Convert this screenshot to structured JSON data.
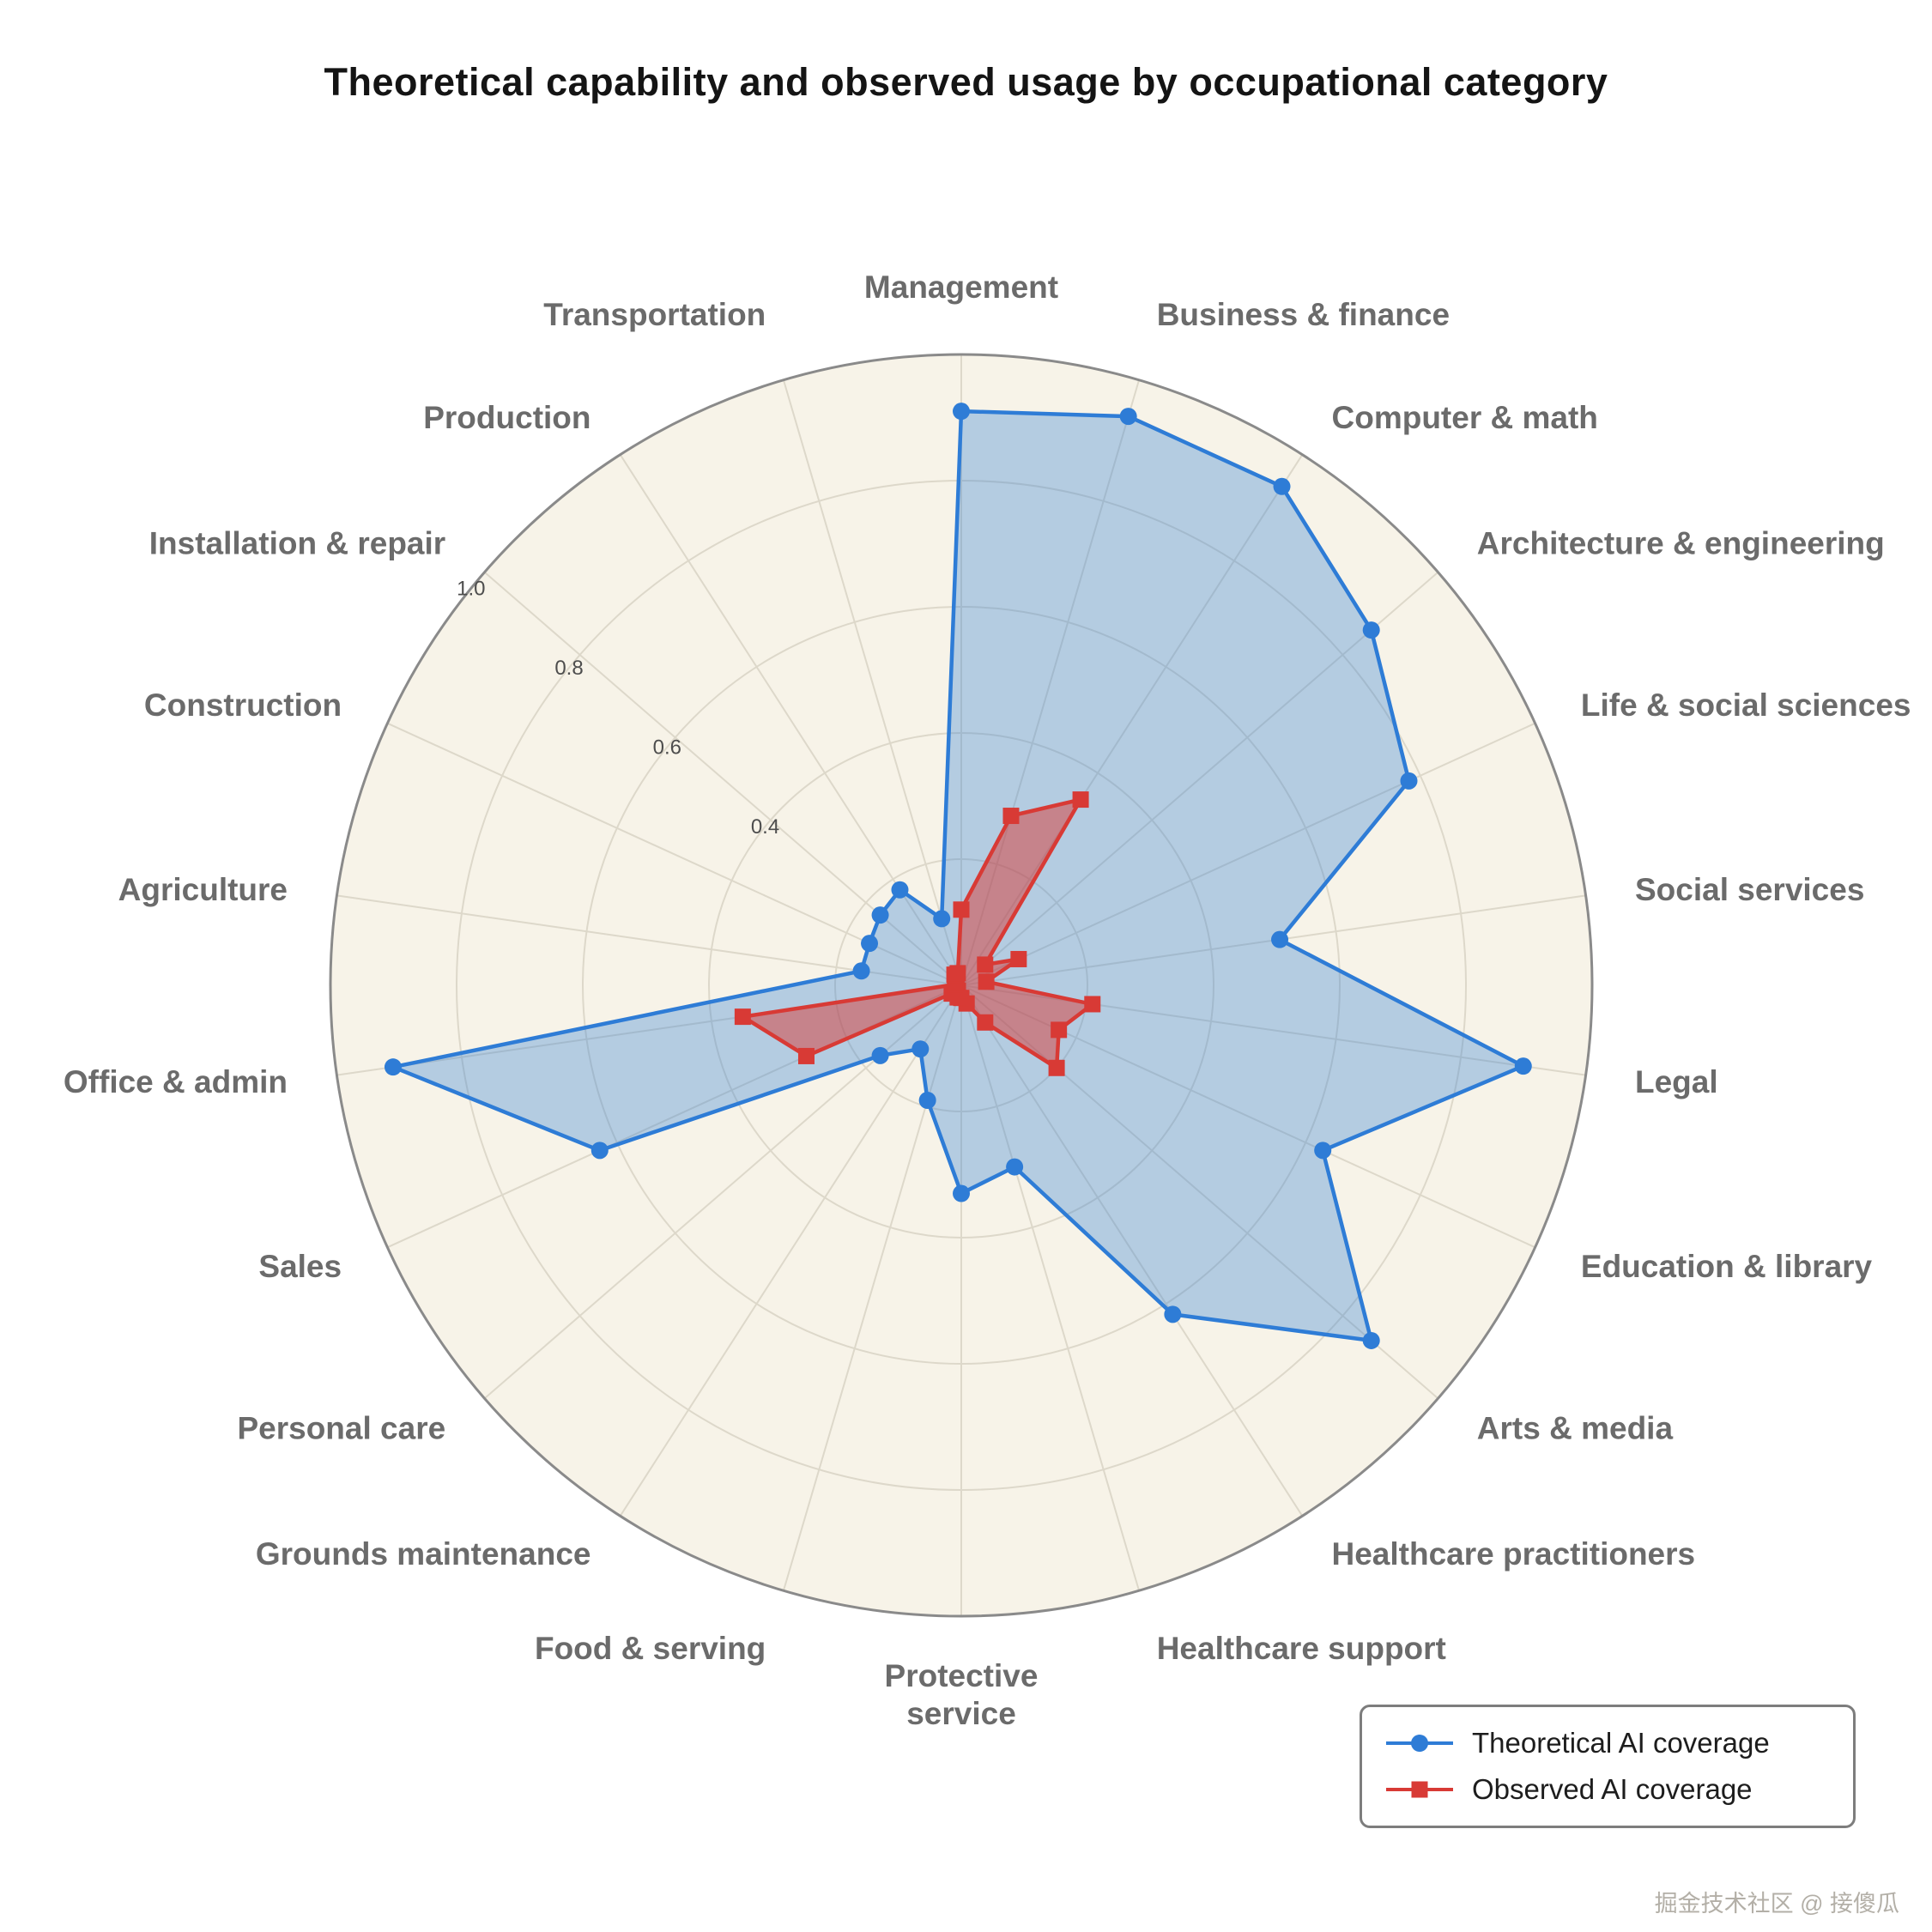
{
  "title": "Theoretical capability and observed usage by occupational category",
  "watermark": "掘金技术社区 @ 接傻瓜",
  "legend": {
    "items": [
      {
        "label": "Theoretical AI coverage"
      },
      {
        "label": "Observed AI coverage"
      }
    ]
  },
  "chart_data": {
    "type": "radar",
    "title": "Theoretical capability and observed usage by occupational category",
    "categories": [
      "Management",
      "Business & finance",
      "Computer & math",
      "Architecture & engineering",
      "Life & social sciences",
      "Social services",
      "Legal",
      "Education & library",
      "Arts & media",
      "Healthcare practitioners",
      "Healthcare support",
      "Protective\nservice",
      "Food & serving",
      "Grounds maintenance",
      "Personal care",
      "Sales",
      "Office & admin",
      "Agriculture",
      "Construction",
      "Installation & repair",
      "Production",
      "Transportation"
    ],
    "series": [
      {
        "name": "Theoretical AI coverage",
        "marker": "circle",
        "color": "#2e7cd6",
        "fill": "rgba(46,124,214,0.33)",
        "values": [
          0.91,
          0.94,
          0.94,
          0.86,
          0.78,
          0.51,
          0.9,
          0.63,
          0.86,
          0.62,
          0.3,
          0.33,
          0.19,
          0.12,
          0.17,
          0.63,
          0.91,
          0.16,
          0.16,
          0.17,
          0.18,
          0.11
        ]
      },
      {
        "name": "Observed AI coverage",
        "marker": "square",
        "color": "#d83a35",
        "fill": "rgba(216,58,53,0.5)",
        "values": [
          0.12,
          0.28,
          0.35,
          0.05,
          0.1,
          0.04,
          0.21,
          0.17,
          0.2,
          0.07,
          0.03,
          0.02,
          0.02,
          0.01,
          0.02,
          0.27,
          0.35,
          0.01,
          0.01,
          0.01,
          0.02,
          0.02
        ]
      }
    ],
    "r_ticks": [
      0.4,
      0.6,
      0.8,
      1.0
    ],
    "r_grid": [
      0.2,
      0.4,
      0.6,
      0.8,
      1.0
    ],
    "r_max": 1.0,
    "grid": true,
    "legend_position": "bottom-right",
    "colors": {
      "plot_bg": "#f7f3e8",
      "grid": "#ddd8ca",
      "outline": "#8a8a8a",
      "category_label": "#6b6b6b",
      "tick_label": "#4d4d4d"
    }
  }
}
